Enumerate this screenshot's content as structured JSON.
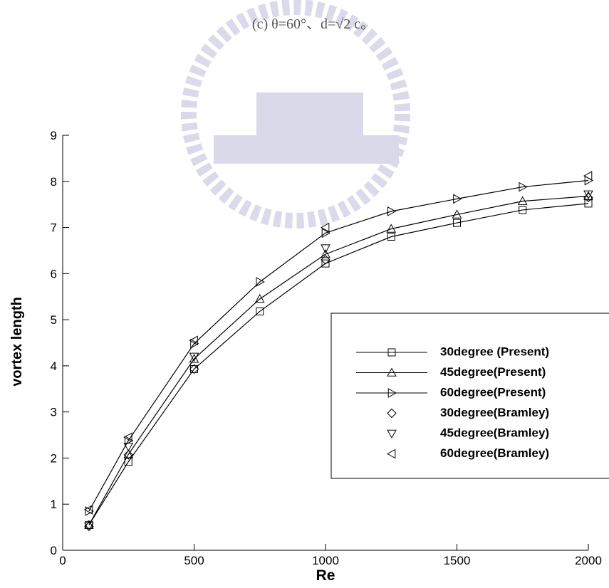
{
  "chart_data": {
    "type": "line",
    "title": "(c) θ=60°、d=√2 c。",
    "x_label": "Re",
    "y_label": "vortex length",
    "xlim": [
      0,
      2000
    ],
    "xticks": [
      0,
      500,
      1000,
      1500,
      2000
    ],
    "ylim": [
      0,
      9
    ],
    "yticks": [
      0,
      1,
      2,
      3,
      4,
      5,
      6,
      7,
      8,
      9
    ],
    "legend": "right",
    "series": [
      {
        "name": "30degree (Present)",
        "color": "#000000",
        "marker": "square",
        "line": true,
        "x": [
          100,
          250,
          500,
          750,
          1000,
          1250,
          1500,
          1750,
          2000
        ],
        "values": [
          0.55,
          1.92,
          3.93,
          5.18,
          6.22,
          6.8,
          7.1,
          7.38,
          7.52
        ]
      },
      {
        "name": "45degree(Present)",
        "color": "#000000",
        "marker": "triangle-up",
        "line": true,
        "x": [
          100,
          250,
          500,
          750,
          1000,
          1250,
          1500,
          1750,
          2000
        ],
        "values": [
          0.55,
          2.08,
          4.15,
          5.45,
          6.42,
          6.97,
          7.28,
          7.57,
          7.68
        ]
      },
      {
        "name": "60degree(Present)",
        "color": "#000000",
        "marker": "triangle-right",
        "line": true,
        "x": [
          100,
          250,
          500,
          750,
          1000,
          1250,
          1500,
          1750,
          2000
        ],
        "values": [
          0.85,
          2.38,
          4.48,
          5.82,
          6.88,
          7.35,
          7.62,
          7.88,
          8.02
        ]
      },
      {
        "name": "30degree(Bramley)",
        "color": "#000000",
        "marker": "diamond",
        "line": false,
        "x": [
          100,
          250,
          500,
          1000,
          2000
        ],
        "values": [
          0.52,
          2.07,
          3.93,
          6.3,
          7.65
        ]
      },
      {
        "name": "45degree(Bramley)",
        "color": "#000000",
        "marker": "triangle-down",
        "line": false,
        "x": [
          100,
          250,
          500,
          1000,
          2000
        ],
        "values": [
          0.52,
          2.25,
          4.2,
          6.55,
          7.72
        ]
      },
      {
        "name": "60degree(Bramley)",
        "color": "#000000",
        "marker": "triangle-left",
        "line": false,
        "x": [
          100,
          250,
          500,
          1000,
          2000
        ],
        "values": [
          0.88,
          2.45,
          4.55,
          7.0,
          8.12
        ]
      }
    ]
  }
}
